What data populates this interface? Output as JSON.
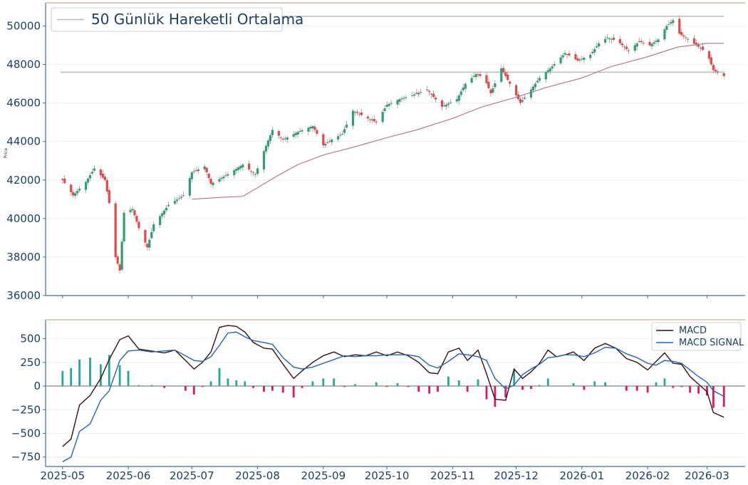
{
  "chart_data": [
    {
      "type": "candlestick",
      "ylabel": "Price",
      "ylim": [
        36000,
        51200
      ],
      "yticks": [
        36000,
        38000,
        40000,
        42000,
        44000,
        46000,
        48000,
        50000
      ],
      "legend": {
        "position": "top-left",
        "entries": [
          "50 Günlük Hareketli Ortalama"
        ]
      },
      "colors": {
        "up": "#2e9f6f",
        "down": "#e24a4a",
        "ma": "#b07088",
        "hline": "#bbbbbb"
      },
      "horizontal_lines": [
        50500,
        47600
      ],
      "candle_anchors": [
        [
          "2025-05-01",
          42000
        ],
        [
          "2025-05-06",
          41200
        ],
        [
          "2025-05-12",
          41900
        ],
        [
          "2025-05-16",
          42600
        ],
        [
          "2025-05-21",
          42000
        ],
        [
          "2025-05-23",
          40800
        ],
        [
          "2025-05-26",
          38000
        ],
        [
          "2025-05-28",
          37300
        ],
        [
          "2025-05-30",
          40300
        ],
        [
          "2025-06-03",
          40500
        ],
        [
          "2025-06-06",
          39500
        ],
        [
          "2025-06-10",
          38500
        ],
        [
          "2025-06-13",
          39700
        ],
        [
          "2025-06-20",
          40700
        ],
        [
          "2025-06-27",
          41200
        ],
        [
          "2025-07-01",
          42400
        ],
        [
          "2025-07-07",
          42700
        ],
        [
          "2025-07-10",
          41800
        ],
        [
          "2025-07-18",
          42300
        ],
        [
          "2025-07-25",
          42800
        ],
        [
          "2025-07-31",
          42300
        ],
        [
          "2025-08-04",
          43500
        ],
        [
          "2025-08-08",
          44600
        ],
        [
          "2025-08-13",
          44100
        ],
        [
          "2025-08-20",
          44500
        ],
        [
          "2025-08-27",
          44800
        ],
        [
          "2025-09-01",
          43800
        ],
        [
          "2025-09-05",
          44100
        ],
        [
          "2025-09-10",
          44400
        ],
        [
          "2025-09-15",
          45600
        ],
        [
          "2025-09-22",
          45200
        ],
        [
          "2025-09-26",
          45000
        ],
        [
          "2025-10-01",
          45900
        ],
        [
          "2025-10-07",
          46200
        ],
        [
          "2025-10-13",
          46400
        ],
        [
          "2025-10-20",
          46700
        ],
        [
          "2025-10-27",
          45800
        ],
        [
          "2025-11-03",
          46200
        ],
        [
          "2025-11-07",
          47000
        ],
        [
          "2025-11-12",
          47500
        ],
        [
          "2025-11-16",
          47300
        ],
        [
          "2025-11-19",
          46500
        ],
        [
          "2025-11-24",
          47800
        ],
        [
          "2025-11-28",
          47000
        ],
        [
          "2025-12-03",
          46000
        ],
        [
          "2025-12-08",
          46700
        ],
        [
          "2025-12-12",
          47300
        ],
        [
          "2025-12-18",
          47900
        ],
        [
          "2025-12-24",
          48600
        ],
        [
          "2025-12-30",
          48200
        ],
        [
          "2026-01-05",
          48500
        ],
        [
          "2026-01-09",
          49100
        ],
        [
          "2026-01-13",
          49400
        ],
        [
          "2026-01-18",
          49200
        ],
        [
          "2026-01-23",
          48700
        ],
        [
          "2026-01-28",
          49200
        ],
        [
          "2026-02-02",
          49000
        ],
        [
          "2026-02-06",
          49300
        ],
        [
          "2026-02-10",
          50000
        ],
        [
          "2026-02-13",
          50300
        ],
        [
          "2026-02-16",
          49600
        ],
        [
          "2026-02-20",
          49300
        ],
        [
          "2026-02-24",
          49000
        ],
        [
          "2026-03-01",
          48600
        ],
        [
          "2026-03-04",
          47700
        ],
        [
          "2026-03-09",
          47400
        ]
      ],
      "moving_average_50": [
        [
          "2025-07-01",
          41000
        ],
        [
          "2025-07-15",
          41100
        ],
        [
          "2025-07-25",
          41150
        ],
        [
          "2025-08-01",
          41600
        ],
        [
          "2025-08-10",
          42200
        ],
        [
          "2025-08-20",
          42800
        ],
        [
          "2025-09-01",
          43300
        ],
        [
          "2025-09-15",
          43700
        ],
        [
          "2025-10-01",
          44200
        ],
        [
          "2025-10-15",
          44600
        ],
        [
          "2025-11-01",
          45200
        ],
        [
          "2025-11-15",
          45800
        ],
        [
          "2025-12-01",
          46300
        ],
        [
          "2025-12-15",
          46800
        ],
        [
          "2026-01-01",
          47300
        ],
        [
          "2026-01-15",
          47900
        ],
        [
          "2026-02-01",
          48400
        ],
        [
          "2026-02-15",
          48900
        ],
        [
          "2026-03-01",
          49100
        ],
        [
          "2026-03-09",
          49100
        ]
      ]
    },
    {
      "type": "line+bar",
      "ylim": [
        -850,
        700
      ],
      "yticks": [
        -750,
        -500,
        -250,
        0,
        250,
        500
      ],
      "legend": {
        "position": "top-right"
      },
      "series": [
        {
          "name": "MACD",
          "color": "#3a0f0f",
          "points": [
            [
              "2025-05-01",
              -640
            ],
            [
              "2025-05-05",
              -560
            ],
            [
              "2025-05-09",
              -200
            ],
            [
              "2025-05-14",
              -100
            ],
            [
              "2025-05-19",
              80
            ],
            [
              "2025-05-23",
              280
            ],
            [
              "2025-05-28",
              490
            ],
            [
              "2025-06-01",
              530
            ],
            [
              "2025-06-06",
              390
            ],
            [
              "2025-06-12",
              370
            ],
            [
              "2025-06-18",
              350
            ],
            [
              "2025-06-23",
              380
            ],
            [
              "2025-06-28",
              270
            ],
            [
              "2025-07-02",
              180
            ],
            [
              "2025-07-06",
              250
            ],
            [
              "2025-07-10",
              360
            ],
            [
              "2025-07-14",
              620
            ],
            [
              "2025-07-18",
              640
            ],
            [
              "2025-07-22",
              630
            ],
            [
              "2025-07-26",
              570
            ],
            [
              "2025-07-30",
              460
            ],
            [
              "2025-08-04",
              400
            ],
            [
              "2025-08-08",
              390
            ],
            [
              "2025-08-13",
              230
            ],
            [
              "2025-08-18",
              80
            ],
            [
              "2025-08-22",
              160
            ],
            [
              "2025-08-27",
              250
            ],
            [
              "2025-09-01",
              320
            ],
            [
              "2025-09-06",
              360
            ],
            [
              "2025-09-11",
              310
            ],
            [
              "2025-09-16",
              330
            ],
            [
              "2025-09-21",
              320
            ],
            [
              "2025-09-26",
              360
            ],
            [
              "2025-10-01",
              320
            ],
            [
              "2025-10-06",
              360
            ],
            [
              "2025-10-11",
              320
            ],
            [
              "2025-10-16",
              250
            ],
            [
              "2025-10-21",
              140
            ],
            [
              "2025-10-25",
              130
            ],
            [
              "2025-10-30",
              360
            ],
            [
              "2025-11-04",
              400
            ],
            [
              "2025-11-08",
              270
            ],
            [
              "2025-11-13",
              380
            ],
            [
              "2025-11-17",
              130
            ],
            [
              "2025-11-21",
              -140
            ],
            [
              "2025-11-26",
              -150
            ],
            [
              "2025-11-30",
              180
            ],
            [
              "2025-12-04",
              80
            ],
            [
              "2025-12-08",
              150
            ],
            [
              "2025-12-12",
              240
            ],
            [
              "2025-12-16",
              380
            ],
            [
              "2025-12-20",
              310
            ],
            [
              "2025-12-24",
              330
            ],
            [
              "2025-12-28",
              360
            ],
            [
              "2026-01-02",
              270
            ],
            [
              "2026-01-07",
              400
            ],
            [
              "2026-01-12",
              450
            ],
            [
              "2026-01-17",
              400
            ],
            [
              "2026-01-22",
              290
            ],
            [
              "2026-01-27",
              250
            ],
            [
              "2026-02-01",
              170
            ],
            [
              "2026-02-05",
              260
            ],
            [
              "2026-02-09",
              350
            ],
            [
              "2026-02-13",
              240
            ],
            [
              "2026-02-17",
              230
            ],
            [
              "2026-02-21",
              100
            ],
            [
              "2026-02-25",
              20
            ],
            [
              "2026-03-01",
              -60
            ],
            [
              "2026-03-04",
              -280
            ],
            [
              "2026-03-09",
              -330
            ]
          ]
        },
        {
          "name": "MACD SIGNAL",
          "color": "#2463b8",
          "points": [
            [
              "2025-05-01",
              -800
            ],
            [
              "2025-05-05",
              -750
            ],
            [
              "2025-05-09",
              -480
            ],
            [
              "2025-05-14",
              -400
            ],
            [
              "2025-05-19",
              -150
            ],
            [
              "2025-05-23",
              -50
            ],
            [
              "2025-05-28",
              270
            ],
            [
              "2025-06-01",
              370
            ],
            [
              "2025-06-06",
              380
            ],
            [
              "2025-06-12",
              360
            ],
            [
              "2025-06-18",
              370
            ],
            [
              "2025-06-23",
              380
            ],
            [
              "2025-06-28",
              320
            ],
            [
              "2025-07-02",
              270
            ],
            [
              "2025-07-06",
              260
            ],
            [
              "2025-07-10",
              310
            ],
            [
              "2025-07-14",
              430
            ],
            [
              "2025-07-18",
              560
            ],
            [
              "2025-07-22",
              570
            ],
            [
              "2025-07-26",
              520
            ],
            [
              "2025-07-30",
              480
            ],
            [
              "2025-08-04",
              460
            ],
            [
              "2025-08-08",
              440
            ],
            [
              "2025-08-13",
              300
            ],
            [
              "2025-08-18",
              200
            ],
            [
              "2025-08-22",
              180
            ],
            [
              "2025-08-27",
              200
            ],
            [
              "2025-09-01",
              240
            ],
            [
              "2025-09-06",
              280
            ],
            [
              "2025-09-11",
              320
            ],
            [
              "2025-09-16",
              310
            ],
            [
              "2025-09-21",
              320
            ],
            [
              "2025-09-26",
              320
            ],
            [
              "2025-10-01",
              330
            ],
            [
              "2025-10-06",
              330
            ],
            [
              "2025-10-11",
              330
            ],
            [
              "2025-10-16",
              310
            ],
            [
              "2025-10-21",
              220
            ],
            [
              "2025-10-25",
              190
            ],
            [
              "2025-10-30",
              260
            ],
            [
              "2025-11-04",
              340
            ],
            [
              "2025-11-08",
              330
            ],
            [
              "2025-11-13",
              310
            ],
            [
              "2025-11-17",
              270
            ],
            [
              "2025-11-21",
              80
            ],
            [
              "2025-11-26",
              -30
            ],
            [
              "2025-11-30",
              10
            ],
            [
              "2025-12-04",
              120
            ],
            [
              "2025-12-08",
              180
            ],
            [
              "2025-12-12",
              230
            ],
            [
              "2025-12-16",
              300
            ],
            [
              "2025-12-20",
              310
            ],
            [
              "2025-12-24",
              330
            ],
            [
              "2025-12-28",
              330
            ],
            [
              "2026-01-02",
              310
            ],
            [
              "2026-01-07",
              350
            ],
            [
              "2026-01-12",
              410
            ],
            [
              "2026-01-17",
              400
            ],
            [
              "2026-01-22",
              340
            ],
            [
              "2026-01-27",
              300
            ],
            [
              "2026-02-01",
              240
            ],
            [
              "2026-02-05",
              220
            ],
            [
              "2026-02-09",
              270
            ],
            [
              "2026-02-13",
              260
            ],
            [
              "2026-02-17",
              240
            ],
            [
              "2026-02-21",
              170
            ],
            [
              "2026-02-25",
              100
            ],
            [
              "2026-03-01",
              40
            ],
            [
              "2026-03-04",
              -50
            ],
            [
              "2026-03-09",
              -110
            ]
          ]
        }
      ],
      "histogram": {
        "note": "MACD minus MACD SIGNAL",
        "colors": {
          "positive": "#26a69a",
          "negative": "#e0185a"
        }
      }
    }
  ],
  "x_axis": {
    "type": "date",
    "range": [
      "2025-04-23",
      "2026-03-19"
    ],
    "ticks": [
      "2025-05",
      "2025-06",
      "2025-07",
      "2025-08",
      "2025-09",
      "2025-10",
      "2025-11",
      "2025-12",
      "2026-01",
      "2026-02",
      "2026-03"
    ],
    "tick_dates": [
      "2025-05-01",
      "2025-06-01",
      "2025-07-01",
      "2025-08-01",
      "2025-09-01",
      "2025-10-01",
      "2025-11-01",
      "2025-12-01",
      "2026-01-01",
      "2026-02-01",
      "2026-03-01"
    ]
  }
}
